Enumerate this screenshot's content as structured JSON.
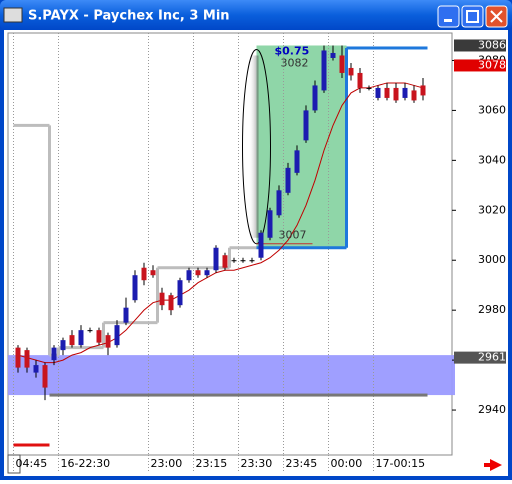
{
  "window": {
    "title": "S.PAYX - Paychex Inc, 3 Min"
  },
  "chart_data": {
    "type": "candlestick",
    "categories": [
      "04:45",
      null,
      null,
      null,
      null,
      "16-22:30",
      null,
      null,
      null,
      null,
      null,
      null,
      null,
      null,
      null,
      "23:00",
      null,
      null,
      null,
      null,
      "23:15",
      null,
      null,
      null,
      null,
      "23:30",
      null,
      null,
      null,
      null,
      "23:45",
      null,
      null,
      null,
      null,
      "00:00",
      null,
      null,
      null,
      null,
      "17-00:15",
      null,
      null,
      null,
      null,
      null
    ],
    "open": [
      2965,
      2964,
      2955,
      2958,
      2960,
      2964,
      2970,
      2966,
      2972,
      2972,
      2970,
      2966,
      2975,
      2984,
      2997,
      2996,
      2987,
      2986,
      2982,
      2992,
      2996,
      2994,
      2996,
      3002,
      3000,
      3000,
      3000,
      3001,
      3009,
      3018,
      3027,
      3035,
      3048,
      3060,
      3068,
      3081,
      3082,
      3077,
      3075,
      3069,
      3065,
      3069,
      3069,
      3065,
      3068,
      3070
    ],
    "high": [
      2966,
      2965,
      2960,
      2959,
      2966,
      2969,
      2972,
      2974,
      2973,
      2973,
      2971,
      2976,
      2985,
      2996,
      2999,
      2998,
      2989,
      2987,
      2993,
      2997,
      2997,
      2997,
      3006,
      3003,
      3001,
      3001,
      3001,
      3012,
      3021,
      3030,
      3039,
      3046,
      3062,
      3072,
      3086,
      3086,
      3086,
      3079,
      3077,
      3070,
      3070,
      3071,
      3071,
      3071,
      3070,
      3073
    ],
    "low": [
      2955,
      2955,
      2953,
      2944,
      2958,
      2962,
      2965,
      2965,
      2971,
      2966,
      2962,
      2965,
      2974,
      2983,
      2990,
      2993,
      2980,
      2978,
      2981,
      2991,
      2993,
      2993,
      2995,
      2996,
      2999,
      2999,
      2999,
      3000,
      3008,
      3017,
      3026,
      3034,
      3047,
      3059,
      3067,
      3080,
      3073,
      3072,
      3067,
      3068,
      3064,
      3064,
      3063,
      3064,
      3063,
      3064
    ],
    "close": [
      2957,
      2957,
      2958,
      2949,
      2965,
      2968,
      2966,
      2972,
      2972,
      2967,
      2965,
      2974,
      2981,
      2994,
      2992,
      2994,
      2982,
      2980,
      2992,
      2996,
      2994,
      2996,
      3005,
      2997,
      3000,
      3000,
      3000,
      3011,
      3020,
      3028,
      3037,
      3044,
      3060,
      3070,
      3084,
      3083,
      3075,
      3074,
      3069,
      3069,
      3069,
      3065,
      3064,
      3069,
      3064,
      3066
    ],
    "up_color": "#1c1cb0",
    "down_color": "#c8141e",
    "lines": [
      {
        "color": "#bdbdbd",
        "width": 3,
        "step": true,
        "values": [
          3054,
          3054,
          3054,
          3054,
          2962,
          2965,
          2965,
          2965,
          2965,
          2965,
          2975,
          2975,
          2975,
          2975,
          2975,
          2975,
          2997,
          2997,
          2997,
          2997,
          2997,
          2997,
          2997,
          2997,
          3005,
          3005,
          3005,
          null,
          null,
          null,
          null,
          null,
          null,
          null,
          null,
          null,
          null,
          null,
          null,
          null,
          null,
          null,
          null,
          null,
          null,
          null
        ]
      },
      {
        "color": "#1e78dc",
        "width": 3,
        "step": true,
        "values": [
          null,
          null,
          null,
          null,
          null,
          null,
          null,
          null,
          null,
          null,
          null,
          null,
          null,
          null,
          null,
          null,
          null,
          null,
          null,
          null,
          null,
          null,
          null,
          null,
          null,
          null,
          null,
          3005,
          3005,
          3005,
          3005,
          3005,
          3005,
          3005,
          3005,
          3005,
          3005,
          3085,
          3085,
          3085,
          3085,
          3085,
          3085,
          3085,
          3085,
          3085
        ]
      },
      {
        "color": "#777777",
        "width": 3,
        "step": true,
        "values": [
          null,
          null,
          null,
          null,
          2946,
          2946,
          2946,
          2946,
          2946,
          2946,
          2946,
          2946,
          2946,
          2946,
          2946,
          2946,
          2946,
          2946,
          2946,
          2946,
          2946,
          2946,
          2946,
          2946,
          2946,
          2946,
          2946,
          2946,
          2946,
          2946,
          2946,
          2946,
          2946,
          2946,
          2946,
          2946,
          2946,
          2946,
          2946,
          2946,
          2946,
          2946,
          2946,
          2946,
          2946,
          2946
        ]
      },
      {
        "color": "#e01010",
        "width": 3,
        "step": true,
        "values": [
          2926,
          2926,
          2926,
          2926,
          null,
          null,
          null,
          null,
          null,
          null,
          null,
          null,
          null,
          null,
          null,
          null,
          null,
          null,
          null,
          null,
          null,
          null,
          null,
          null,
          null,
          null,
          null,
          null,
          null,
          null,
          null,
          null,
          null,
          null,
          null,
          null,
          null,
          null,
          null,
          null,
          null,
          null,
          null,
          null,
          null,
          null
        ]
      },
      {
        "color": "#c00000",
        "width": 1,
        "step": false,
        "values": [
          2962,
          2961,
          2960,
          2959,
          2959,
          2960,
          2962,
          2963,
          2965,
          2966,
          2967,
          2969,
          2972,
          2976,
          2980,
          2983,
          2984,
          2984,
          2986,
          2988,
          2991,
          2993,
          2995,
          2996,
          2996,
          2997,
          2998,
          2999,
          3001,
          3004,
          3008,
          3014,
          3022,
          3032,
          3044,
          3054,
          3062,
          3067,
          3069,
          3069,
          3070,
          3071,
          3071,
          3071,
          3070,
          3069
        ]
      }
    ],
    "band": {
      "range": [
        2946,
        2962
      ],
      "color": "#9a9aff"
    },
    "highlight": {
      "from": 27,
      "to": 36,
      "range": [
        3005,
        3086
      ],
      "color": "#8fd6a8"
    },
    "annotations": [
      "$0.75",
      "3082",
      "3007"
    ],
    "price_labels": [
      {
        "value": 3086,
        "color": "#3a3a3a"
      },
      {
        "value": 3078,
        "color": "#e00000"
      },
      {
        "value": 2961,
        "color": "#555555"
      }
    ],
    "ylim": [
      2922,
      3091
    ],
    "yticks": [
      2940,
      2960,
      2980,
      3000,
      3020,
      3040,
      3060,
      3080
    ],
    "grid_x": true
  }
}
